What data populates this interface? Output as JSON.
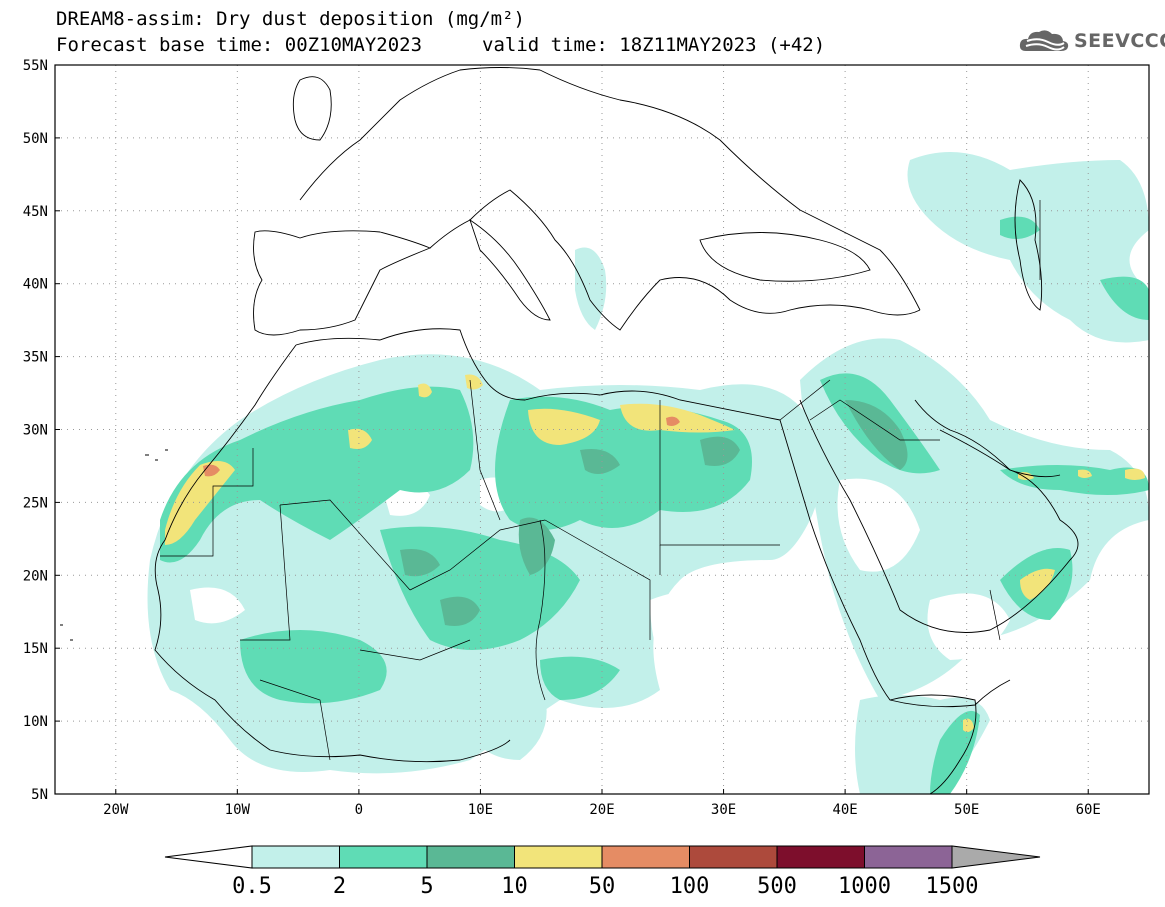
{
  "header": {
    "title_line1": "DREAM8-assim: Dry dust deposition (mg/m²)",
    "forecast_base": "Forecast base time: 00Z10MAY2023",
    "valid_time": "valid time: 18Z11MAY2023 (+42)",
    "logo_text": "SEEVCCC"
  },
  "map": {
    "lat_labels": [
      "55N",
      "50N",
      "45N",
      "40N",
      "35N",
      "30N",
      "25N",
      "20N",
      "15N",
      "10N",
      "5N"
    ],
    "lon_labels": [
      "20W",
      "10W",
      "0",
      "10E",
      "20E",
      "30E",
      "40E",
      "50E",
      "60E"
    ],
    "lat_range": [
      5,
      55
    ],
    "lon_range": [
      -25,
      65
    ],
    "grid": true
  },
  "colorbar": {
    "labels": [
      "0.5",
      "2",
      "5",
      "10",
      "50",
      "100",
      "500",
      "1000",
      "1500"
    ],
    "colors": [
      "#c2f0ea",
      "#5fdcb5",
      "#5ab895",
      "#f2e47a",
      "#e58c64",
      "#ad4a3c",
      "#7d0e2c",
      "#8c6496"
    ],
    "under_color": "#ffffff",
    "over_color": "#aaaaaa"
  }
}
